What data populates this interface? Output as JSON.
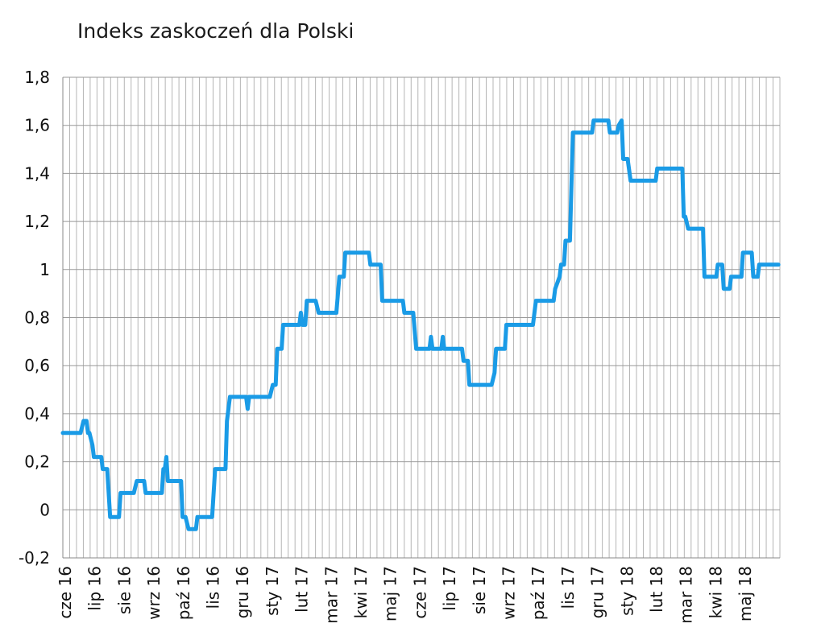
{
  "chart_data": {
    "type": "line",
    "title": "Indeks zaskoczeń dla Polski",
    "xlabel": "",
    "ylabel": "",
    "ylim": [
      -0.2,
      1.8
    ],
    "yticks": [
      -0.2,
      0,
      0.2,
      0.4,
      0.6,
      0.8,
      1,
      1.2,
      1.4,
      1.6,
      1.8
    ],
    "ytick_labels": [
      "-0,2",
      "0",
      "0,2",
      "0,4",
      "0,6",
      "0,8",
      "1",
      "1,2",
      "1,4",
      "1,6",
      "1,8"
    ],
    "x_tick_labels": [
      "cze 16",
      "lip 16",
      "sie 16",
      "wrz 16",
      "paź 16",
      "lis 16",
      "gru 16",
      "sty 17",
      "lut 17",
      "mar 17",
      "kwi 17",
      "maj 17",
      "cze 17",
      "lip 17",
      "sie 17",
      "wrz 17",
      "paź 17",
      "lis 17",
      "gru 17",
      "sty 18",
      "lut 18",
      "mar 18",
      "kwi 18",
      "maj 18"
    ],
    "grid": "vertical and horizontal",
    "line_color": "#1a9be6",
    "series": [
      {
        "values": [
          [
            0.0,
            0.32
          ],
          [
            0.6,
            0.32
          ],
          [
            0.7,
            0.37
          ],
          [
            0.8,
            0.37
          ],
          [
            0.85,
            0.32
          ],
          [
            0.9,
            0.32
          ],
          [
            1.0,
            0.27
          ],
          [
            1.05,
            0.22
          ],
          [
            1.3,
            0.22
          ],
          [
            1.35,
            0.17
          ],
          [
            1.5,
            0.17
          ],
          [
            1.6,
            -0.03
          ],
          [
            1.9,
            -0.03
          ],
          [
            1.95,
            0.07
          ],
          [
            2.4,
            0.07
          ],
          [
            2.5,
            0.12
          ],
          [
            2.75,
            0.12
          ],
          [
            2.8,
            0.07
          ],
          [
            3.35,
            0.07
          ],
          [
            3.4,
            0.17
          ],
          [
            3.45,
            0.17
          ],
          [
            3.5,
            0.22
          ],
          [
            3.55,
            0.12
          ],
          [
            4.0,
            0.12
          ],
          [
            4.05,
            -0.03
          ],
          [
            4.15,
            -0.03
          ],
          [
            4.25,
            -0.08
          ],
          [
            4.5,
            -0.08
          ],
          [
            4.55,
            -0.03
          ],
          [
            5.05,
            -0.03
          ],
          [
            5.15,
            0.17
          ],
          [
            5.5,
            0.17
          ],
          [
            5.55,
            0.37
          ],
          [
            5.65,
            0.47
          ],
          [
            6.2,
            0.47
          ],
          [
            6.25,
            0.42
          ],
          [
            6.3,
            0.47
          ],
          [
            7.0,
            0.47
          ],
          [
            7.1,
            0.52
          ],
          [
            7.2,
            0.52
          ],
          [
            7.25,
            0.67
          ],
          [
            7.4,
            0.67
          ],
          [
            7.45,
            0.77
          ],
          [
            8.0,
            0.77
          ],
          [
            8.05,
            0.82
          ],
          [
            8.1,
            0.77
          ],
          [
            8.2,
            0.77
          ],
          [
            8.25,
            0.87
          ],
          [
            8.55,
            0.87
          ],
          [
            8.65,
            0.82
          ],
          [
            9.25,
            0.82
          ],
          [
            9.35,
            0.97
          ],
          [
            9.5,
            0.97
          ],
          [
            9.55,
            1.07
          ],
          [
            10.35,
            1.07
          ],
          [
            10.4,
            1.02
          ],
          [
            10.75,
            1.02
          ],
          [
            10.8,
            0.87
          ],
          [
            11.5,
            0.87
          ],
          [
            11.55,
            0.82
          ],
          [
            11.85,
            0.82
          ],
          [
            11.95,
            0.67
          ],
          [
            12.4,
            0.67
          ],
          [
            12.45,
            0.72
          ],
          [
            12.5,
            0.67
          ],
          [
            12.8,
            0.67
          ],
          [
            12.85,
            0.72
          ],
          [
            12.9,
            0.67
          ],
          [
            13.5,
            0.67
          ],
          [
            13.55,
            0.62
          ],
          [
            13.7,
            0.62
          ],
          [
            13.75,
            0.52
          ],
          [
            14.5,
            0.52
          ],
          [
            14.6,
            0.57
          ],
          [
            14.65,
            0.67
          ],
          [
            14.95,
            0.67
          ],
          [
            15.0,
            0.77
          ],
          [
            15.9,
            0.77
          ],
          [
            16.0,
            0.87
          ],
          [
            16.6,
            0.87
          ],
          [
            16.65,
            0.92
          ],
          [
            16.8,
            0.97
          ],
          [
            16.85,
            1.02
          ],
          [
            16.95,
            1.02
          ],
          [
            17.0,
            1.12
          ],
          [
            17.15,
            1.12
          ],
          [
            17.25,
            1.57
          ],
          [
            17.9,
            1.57
          ],
          [
            17.95,
            1.62
          ],
          [
            18.45,
            1.62
          ],
          [
            18.5,
            1.57
          ],
          [
            18.75,
            1.57
          ],
          [
            18.8,
            1.6
          ],
          [
            18.9,
            1.62
          ],
          [
            18.95,
            1.46
          ],
          [
            19.1,
            1.46
          ],
          [
            19.2,
            1.37
          ],
          [
            20.05,
            1.37
          ],
          [
            20.1,
            1.42
          ],
          [
            20.95,
            1.42
          ],
          [
            21.0,
            1.22
          ],
          [
            21.05,
            1.22
          ],
          [
            21.15,
            1.17
          ],
          [
            21.65,
            1.17
          ],
          [
            21.7,
            0.97
          ],
          [
            22.1,
            0.97
          ],
          [
            22.15,
            1.02
          ],
          [
            22.3,
            1.02
          ],
          [
            22.35,
            0.92
          ],
          [
            22.55,
            0.92
          ],
          [
            22.6,
            0.97
          ],
          [
            22.95,
            0.97
          ],
          [
            23.0,
            1.07
          ],
          [
            23.3,
            1.07
          ],
          [
            23.35,
            0.97
          ],
          [
            23.5,
            0.97
          ],
          [
            23.55,
            1.02
          ],
          [
            24.2,
            1.02
          ]
        ]
      }
    ]
  }
}
